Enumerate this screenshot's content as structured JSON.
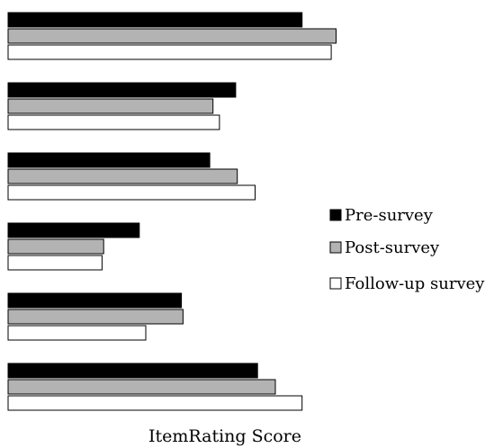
{
  "chart_data": {
    "type": "bar",
    "orientation": "horizontal",
    "title": "",
    "xlabel": "ItemRating Score",
    "ylabel": "",
    "grid": false,
    "legend_position": "right",
    "series": [
      {
        "name": "Pre-survey",
        "color": "#000000",
        "values": [
          3.63,
          2.81,
          2.49,
          1.62,
          2.14,
          3.08
        ]
      },
      {
        "name": "Post-survey",
        "color": "#b3b3b3",
        "values": [
          4.05,
          2.53,
          2.83,
          1.18,
          2.16,
          3.3
        ]
      },
      {
        "name": "Follow-up survey",
        "color": "#ffffff",
        "values": [
          3.99,
          2.61,
          3.05,
          1.16,
          1.7,
          3.63
        ]
      }
    ],
    "categories": [
      "",
      "",
      "",
      "",
      "",
      ""
    ],
    "xlim": [
      0,
      6.1
    ]
  }
}
